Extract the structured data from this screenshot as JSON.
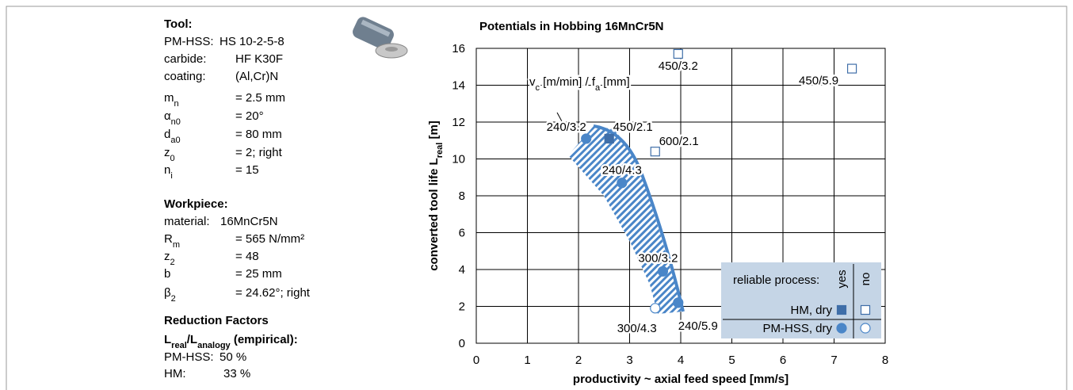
{
  "info_panel": {
    "sections": [
      {
        "heading": "Tool:",
        "rows": [
          {
            "label": "PM-HSS:",
            "value": "HS 10-2-5-8"
          },
          {
            "label": "carbide:",
            "value": "HF K30F"
          },
          {
            "label": "coating:",
            "value": "(Al,Cr)N"
          },
          {
            "label": "m",
            "sub": "n",
            "value": "= 2.5 mm"
          },
          {
            "label": "α",
            "sub": "n0",
            "value": "= 20°"
          },
          {
            "label": "d",
            "sub": "a0",
            "value": "= 80 mm"
          },
          {
            "label": "z",
            "sub": "0",
            "value": "= 2; right"
          },
          {
            "label": "n",
            "sub": "i",
            "value": "= 15"
          }
        ]
      },
      {
        "heading": "Workpiece:",
        "rows": [
          {
            "label": "material:",
            "value": "16MnCr5N"
          },
          {
            "label": "R",
            "sub": "m",
            "value": "= 565 N/mm²"
          },
          {
            "label": "z",
            "sub": "2",
            "value": "= 48"
          },
          {
            "label": "b",
            "value": "= 25 mm"
          },
          {
            "label": "β",
            "sub": "2",
            "value": "= 24.62°; right"
          }
        ]
      },
      {
        "heading": "Reduction Factors",
        "subheading": [
          "L",
          "real",
          "/L",
          "analogy",
          " (empirical):"
        ],
        "rows": [
          {
            "label": "PM-HSS:",
            "value": "50 %"
          },
          {
            "label": "HM:",
            "value": "33 %"
          }
        ]
      }
    ]
  },
  "chart_data": {
    "type": "scatter",
    "title": "Potentials in Hobbing 16MnCr5N",
    "x_label": "productivity ~ axial feed speed [mm/s]",
    "y_label": [
      "converted tool life L",
      "real",
      " [m]"
    ],
    "annotation": [
      "v",
      "c",
      " [m/min] / f",
      "a",
      " [mm]"
    ],
    "xlim": [
      0,
      8
    ],
    "xticks": [
      0,
      1,
      2,
      3,
      4,
      5,
      6,
      7,
      8
    ],
    "ylim": [
      0,
      16
    ],
    "yticks": [
      0,
      2,
      4,
      6,
      8,
      10,
      12,
      14,
      16
    ],
    "grid": true,
    "series": [
      {
        "marker": "square",
        "filled": true,
        "color": "#3f6ea8",
        "x": [
          2.6
        ],
        "values": [
          11.1
        ],
        "labels": [
          "450/2.1"
        ]
      },
      {
        "marker": "square",
        "filled": false,
        "color": "#3f6ea8",
        "x": [
          3.95,
          7.35,
          3.5
        ],
        "values": [
          15.7,
          14.9,
          10.4
        ],
        "labels": [
          "450/3.2",
          "450/5.9",
          "600/2.1"
        ]
      },
      {
        "marker": "circle",
        "filled": true,
        "color": "#4a86c8",
        "x": [
          2.15,
          2.85,
          3.65,
          3.95
        ],
        "values": [
          11.1,
          8.7,
          3.9,
          2.2
        ],
        "labels": [
          "240/3.2",
          "240/4.3",
          "300/3.2",
          "240/5.9"
        ]
      },
      {
        "marker": "circle",
        "filled": false,
        "color": "#4a86c8",
        "x": [
          3.5
        ],
        "values": [
          1.9
        ],
        "labels": [
          "300/4.3"
        ]
      }
    ],
    "legend": {
      "title": "reliable process:",
      "columns": [
        "yes",
        "no"
      ],
      "rows": [
        "HM, dry",
        "PM-HSS, dry"
      ]
    }
  }
}
